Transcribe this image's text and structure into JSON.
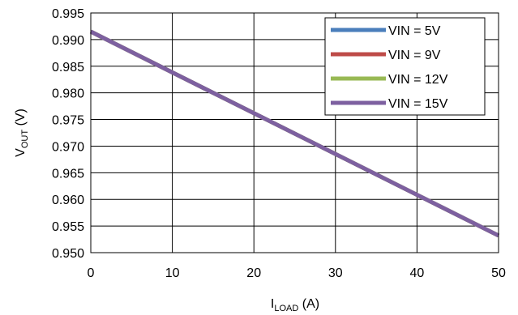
{
  "chart_data": {
    "type": "line",
    "xlabel": {
      "main": "I",
      "sub": "LOAD",
      "unit": " (A)"
    },
    "ylabel": {
      "main": "V",
      "sub": "OUT",
      "unit": " (V)"
    },
    "xlim": [
      0,
      50
    ],
    "ylim": [
      0.95,
      0.995
    ],
    "xticks": [
      "0",
      "10",
      "20",
      "30",
      "40",
      "50"
    ],
    "yticks": [
      "0.950",
      "0.955",
      "0.960",
      "0.965",
      "0.970",
      "0.975",
      "0.980",
      "0.985",
      "0.990",
      "0.995"
    ],
    "grid": true,
    "legend_position": "top-right",
    "series": [
      {
        "name": "VIN = 5V",
        "color": "#4a7ebb",
        "x": [
          0,
          50
        ],
        "y": [
          0.9915,
          0.9532
        ]
      },
      {
        "name": "VIN = 9V",
        "color": "#be4b48",
        "x": [
          0,
          50
        ],
        "y": [
          0.9915,
          0.9532
        ]
      },
      {
        "name": "VIN = 12V",
        "color": "#98b954",
        "x": [
          0,
          50
        ],
        "y": [
          0.9915,
          0.9532
        ]
      },
      {
        "name": "VIN = 15V",
        "color": "#7d60a0",
        "x": [
          0,
          50
        ],
        "y": [
          0.9915,
          0.9532
        ]
      }
    ]
  }
}
